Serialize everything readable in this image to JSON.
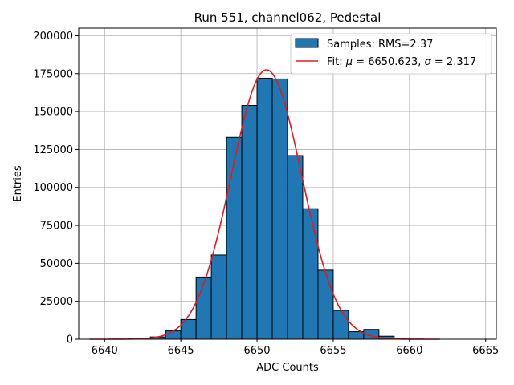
{
  "chart_data": {
    "type": "bar",
    "title": "Run 551, channel062, Pedestal",
    "xlabel": "ADC Counts",
    "ylabel": "Entries",
    "xlim": [
      6638.3,
      6665.7
    ],
    "ylim": [
      0,
      205000
    ],
    "xticks": [
      6640,
      6645,
      6650,
      6655,
      6660,
      6665
    ],
    "yticks": [
      0,
      25000,
      50000,
      75000,
      100000,
      125000,
      150000,
      175000,
      200000
    ],
    "grid": true,
    "legend_position": "top-right",
    "colors": {
      "bars": "#1f77b4",
      "bar_edge": "#000000",
      "fit": "#e31a1c",
      "grid": "#b0b0b0"
    },
    "histogram": {
      "name": "Samples: RMS=2.37",
      "bin_width": 1,
      "bin_starts": [
        6643,
        6644,
        6645,
        6646,
        6647,
        6648,
        6649,
        6650,
        6651,
        6652,
        6653,
        6654,
        6655,
        6656,
        6657,
        6658
      ],
      "values": [
        1500,
        5500,
        13000,
        41000,
        55500,
        133000,
        154000,
        172000,
        171500,
        121000,
        86000,
        45500,
        19000,
        5000,
        6500,
        2000
      ]
    },
    "fit": {
      "label_prefix": "Fit: ",
      "mu_label": "μ",
      "mu": 6650.623,
      "sigma_label": "σ",
      "sigma": 2.317,
      "amplitude": 177500,
      "x_range": [
        6639,
        6662
      ]
    }
  }
}
